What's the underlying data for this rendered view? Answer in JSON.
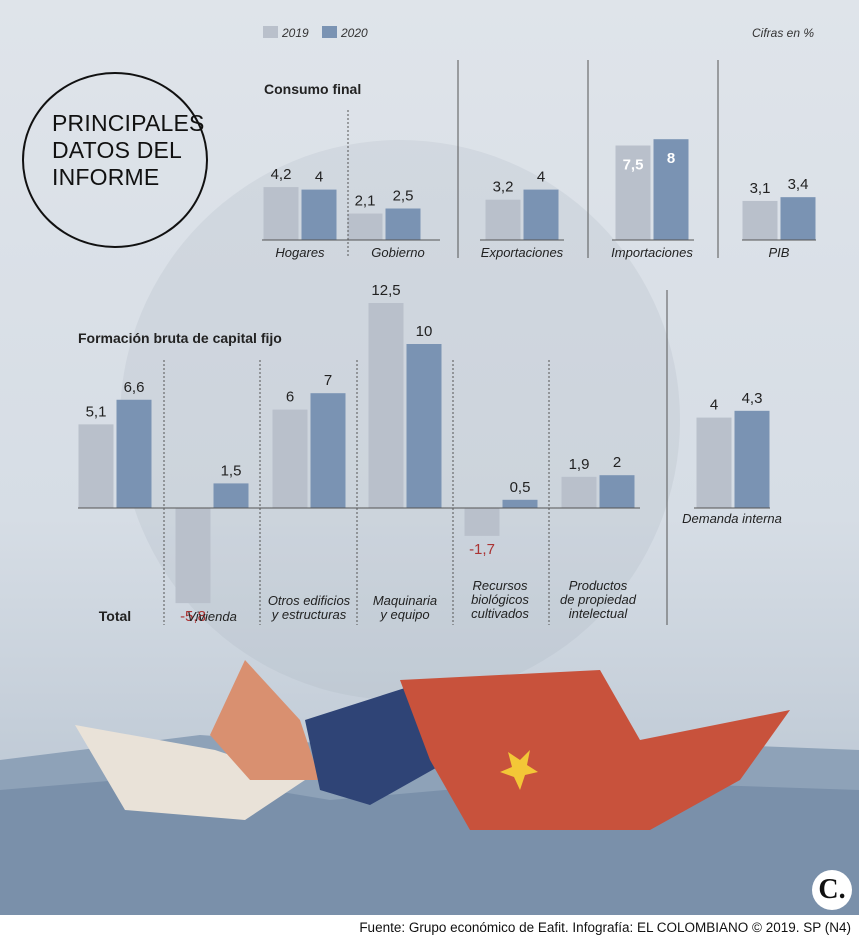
{
  "header": {
    "title": "PRINCIPALES DATOS DEL INFORME",
    "cifras_label": "Cifras en %"
  },
  "legend": [
    {
      "label": "2019",
      "color": "#b9c0cb"
    },
    {
      "label": "2020",
      "color": "#7a93b3"
    }
  ],
  "footer": {
    "source": "Fuente: Grupo económico de Eafit. Infografía: EL COLOMBIANO © 2019. SP (N4)",
    "logo": "C."
  },
  "chart_data": [
    {
      "type": "bar",
      "title": "Consumo final",
      "categories": [
        "Hogares",
        "Gobierno"
      ],
      "series": [
        {
          "name": "2019",
          "values": [
            4.2,
            2.1
          ],
          "labels": [
            "4,2",
            "2,1"
          ]
        },
        {
          "name": "2020",
          "values": [
            4,
            2.5
          ],
          "labels": [
            "4",
            "2,5"
          ]
        }
      ]
    },
    {
      "type": "bar",
      "title": "",
      "categories": [
        "Exportaciones"
      ],
      "series": [
        {
          "name": "2019",
          "values": [
            3.2
          ],
          "labels": [
            "3,2"
          ]
        },
        {
          "name": "2020",
          "values": [
            4
          ],
          "labels": [
            "4"
          ]
        }
      ]
    },
    {
      "type": "bar",
      "title": "",
      "categories": [
        "Importaciones"
      ],
      "series": [
        {
          "name": "2019",
          "values": [
            7.5
          ],
          "labels": [
            "7,5"
          ]
        },
        {
          "name": "2020",
          "values": [
            8
          ],
          "labels": [
            "8"
          ]
        }
      ]
    },
    {
      "type": "bar",
      "title": "",
      "categories": [
        "PIB"
      ],
      "series": [
        {
          "name": "2019",
          "values": [
            3.1
          ],
          "labels": [
            "3,1"
          ]
        },
        {
          "name": "2020",
          "values": [
            3.4
          ],
          "labels": [
            "3,4"
          ]
        }
      ]
    },
    {
      "type": "bar",
      "title": "Formación bruta de capital fijo",
      "categories": [
        "Total",
        "Vivienda",
        "Otros edificios y estructuras",
        "Maquinaria y equipo",
        "Recursos biológicos cultivados",
        "Productos de propiedad intelectual"
      ],
      "series": [
        {
          "name": "2019",
          "values": [
            5.1,
            -5.8,
            6,
            12.5,
            -1.7,
            1.9
          ],
          "labels": [
            "5,1",
            "-5,8",
            "6",
            "12,5",
            "-1,7",
            "1,9"
          ]
        },
        {
          "name": "2020",
          "values": [
            6.6,
            1.5,
            7,
            10,
            0.5,
            2
          ],
          "labels": [
            "6,6",
            "1,5",
            "7",
            "10",
            "0,5",
            "2"
          ]
        }
      ]
    },
    {
      "type": "bar",
      "title": "",
      "categories": [
        "Demanda interna"
      ],
      "series": [
        {
          "name": "2019",
          "values": [
            4
          ],
          "labels": [
            "4"
          ]
        },
        {
          "name": "2020",
          "values": [
            4.3
          ],
          "labels": [
            "4,3"
          ]
        }
      ]
    }
  ]
}
